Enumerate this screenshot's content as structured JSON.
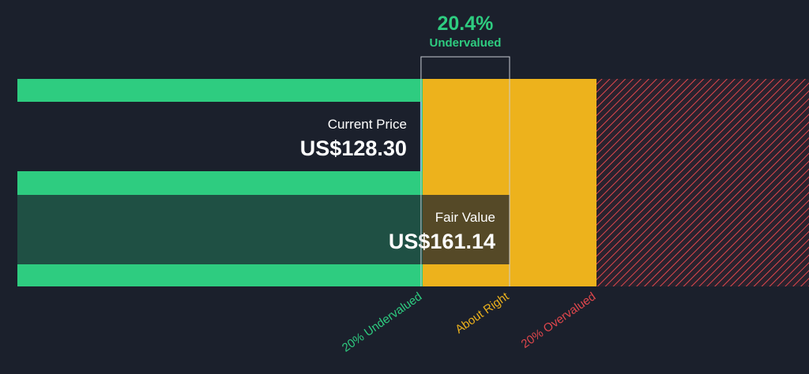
{
  "header": {
    "discount": "20.4%",
    "discount_label": "Undervalued"
  },
  "current_price": {
    "title": "Current Price",
    "value": 128.3,
    "label": "US$128.30"
  },
  "fair_value": {
    "title": "Fair Value",
    "value": 161.14,
    "label": "US$161.14"
  },
  "zones": [
    {
      "value": 20,
      "label": "20% Undervalued",
      "color": "#2ecc80"
    },
    {
      "label": "About Right",
      "color": "#edb21c"
    },
    {
      "value": 20,
      "label": "20% Overvalued",
      "color": "#e0474c"
    }
  ]
}
